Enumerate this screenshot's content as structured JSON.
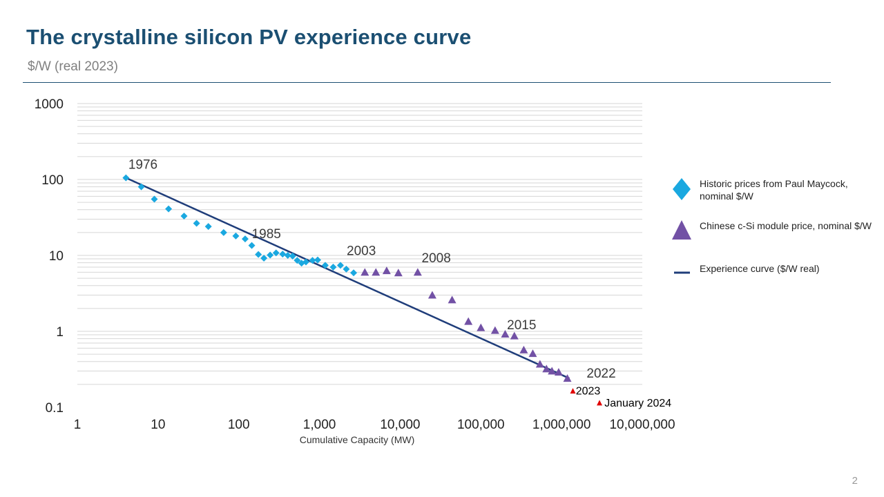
{
  "slide": {
    "title": "The crystalline silicon PV experience curve",
    "subtitle": "$/W  (real 2023)",
    "page_number": "2"
  },
  "legend": [
    {
      "label": "Historic prices from Paul Maycock, nominal $/W",
      "marker": "diamond",
      "color": "#1aa8e0"
    },
    {
      "label": "Chinese c-Si module price, nominal $/W",
      "marker": "triangle",
      "color": "#7251a5"
    },
    {
      "label": "Experience curve ($/W real)",
      "marker": "line",
      "color": "#1f3d7a"
    }
  ],
  "chart_data": {
    "type": "scatter",
    "x_scale": "log",
    "y_scale": "log",
    "xlabel": "Cumulative Capacity (MW)",
    "ylabel": "",
    "xlim": [
      1,
      10000000
    ],
    "ylim": [
      0.1,
      1000
    ],
    "x_tick_labels": [
      "1",
      "10",
      "100",
      "1,000",
      "10,000",
      "100,000",
      "1,000,000",
      "10,000,000"
    ],
    "y_tick_labels": [
      "1000",
      "100",
      "10",
      "1",
      "0.1"
    ],
    "grid": "horizontal minor",
    "legend_position": "right",
    "colors": {
      "historic": "#1aa8e0",
      "chinese": "#7251a5",
      "curve": "#1f3d7a",
      "recent": "#e00000",
      "grid": "#d6d6d6"
    },
    "series": [
      {
        "name": "Historic prices from Paul Maycock, nominal $/W",
        "marker": "diamond",
        "points": [
          [
            4,
            105
          ],
          [
            6.2,
            80
          ],
          [
            9,
            55
          ],
          [
            13.5,
            41
          ],
          [
            21,
            33
          ],
          [
            30,
            26.5
          ],
          [
            42,
            24
          ],
          [
            65,
            20
          ],
          [
            92,
            18
          ],
          [
            120,
            16.5
          ],
          [
            145,
            13.5
          ],
          [
            175,
            10.3
          ],
          [
            205,
            9.2
          ],
          [
            245,
            10.1
          ],
          [
            290,
            10.8
          ],
          [
            350,
            10.4
          ],
          [
            405,
            10.0
          ],
          [
            465,
            9.8
          ],
          [
            530,
            8.6
          ],
          [
            600,
            7.9
          ],
          [
            680,
            8.2
          ],
          [
            820,
            8.6
          ],
          [
            950,
            8.7
          ],
          [
            1180,
            7.4
          ],
          [
            1480,
            7.0
          ],
          [
            1820,
            7.4
          ],
          [
            2150,
            6.6
          ],
          [
            2650,
            5.9
          ]
        ]
      },
      {
        "name": "Chinese c-Si module price, nominal $/W",
        "marker": "triangle",
        "points": [
          [
            3650,
            6.0
          ],
          [
            5000,
            6.0
          ],
          [
            6800,
            6.3
          ],
          [
            9500,
            5.9
          ],
          [
            16500,
            6.0
          ],
          [
            25000,
            3.0
          ],
          [
            44000,
            2.6
          ],
          [
            70000,
            1.35
          ],
          [
            100000,
            1.12
          ],
          [
            150000,
            1.03
          ],
          [
            200000,
            0.92
          ],
          [
            260000,
            0.87
          ],
          [
            340000,
            0.57
          ],
          [
            440000,
            0.51
          ],
          [
            540000,
            0.37
          ],
          [
            650000,
            0.32
          ],
          [
            760000,
            0.3
          ],
          [
            920000,
            0.29
          ],
          [
            1180000,
            0.24
          ]
        ]
      },
      {
        "name": "Recent spot prices",
        "marker": "small-triangle",
        "points": [
          [
            1380000,
            0.165
          ],
          [
            2950000,
            0.115
          ]
        ]
      },
      {
        "name": "Experience curve ($/W real)",
        "marker": "line",
        "points": [
          [
            4,
            105
          ],
          [
            1250000,
            0.24
          ]
        ]
      }
    ],
    "annotations": [
      {
        "text": "1976",
        "x": 6.5,
        "y": 138
      },
      {
        "text": "1985",
        "x": 220,
        "y": 16.8
      },
      {
        "text": "2003",
        "x": 3300,
        "y": 10.1
      },
      {
        "text": "2008",
        "x": 28000,
        "y": 8.1
      },
      {
        "text": "2015",
        "x": 320000,
        "y": 1.06
      },
      {
        "text": "2022",
        "x": 3100000,
        "y": 0.245
      },
      {
        "text": "2023",
        "x": 1500000,
        "y": 0.148,
        "anchor": "start"
      },
      {
        "text": "January 2024",
        "x": 3400000,
        "y": 0.102,
        "anchor": "start"
      }
    ]
  }
}
